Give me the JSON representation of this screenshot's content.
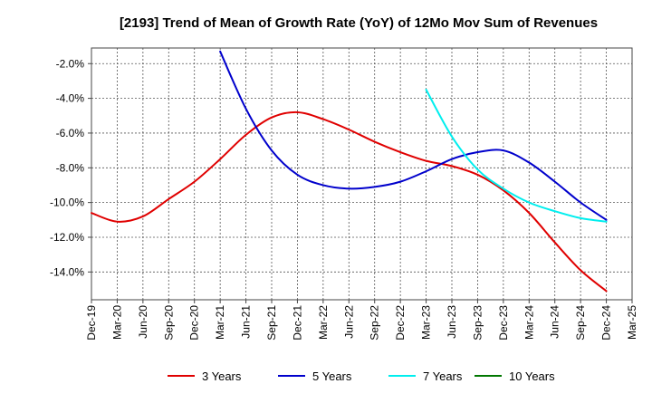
{
  "chart_data": {
    "type": "line",
    "title": "[2193]  Trend of Mean of Growth Rate (YoY) of 12Mo Mov Sum of Revenues",
    "xlabel": "",
    "ylabel": "",
    "x_ticks": [
      "Dec-19",
      "Mar-20",
      "Jun-20",
      "Sep-20",
      "Dec-20",
      "Mar-21",
      "Jun-21",
      "Sep-21",
      "Dec-21",
      "Mar-22",
      "Jun-22",
      "Sep-22",
      "Dec-22",
      "Mar-23",
      "Jun-23",
      "Sep-23",
      "Dec-23",
      "Mar-24",
      "Jun-24",
      "Sep-24",
      "Dec-24",
      "Mar-25"
    ],
    "y_ticks": [
      -2.0,
      -4.0,
      -6.0,
      -8.0,
      -10.0,
      -12.0,
      -14.0
    ],
    "y_tick_labels": [
      "-2.0%",
      "-4.0%",
      "-6.0%",
      "-8.0%",
      "-10.0%",
      "-12.0%",
      "-14.0%"
    ],
    "ylim": [
      -15.6,
      -1.1
    ],
    "grid": true,
    "legend_position": "bottom",
    "series": [
      {
        "name": "3 Years",
        "color": "#e00000",
        "x_index": [
          0,
          1,
          2,
          3,
          4,
          5,
          6,
          7,
          8,
          9,
          10,
          11,
          12,
          13,
          14,
          15,
          16,
          17,
          18,
          19,
          20
        ],
        "values": [
          -10.6,
          -11.1,
          -10.8,
          -9.8,
          -8.8,
          -7.5,
          -6.1,
          -5.1,
          -4.8,
          -5.2,
          -5.8,
          -6.5,
          -7.1,
          -7.6,
          -7.9,
          -8.4,
          -9.3,
          -10.6,
          -12.3,
          -13.9,
          -15.1
        ]
      },
      {
        "name": "5 Years",
        "color": "#0000cc",
        "x_index": [
          5,
          6,
          7,
          8,
          9,
          10,
          11,
          12,
          13,
          14,
          15,
          16,
          17,
          18,
          19,
          20
        ],
        "values": [
          -1.3,
          -4.6,
          -7.0,
          -8.4,
          -9.0,
          -9.2,
          -9.1,
          -8.8,
          -8.2,
          -7.5,
          -7.1,
          -7.0,
          -7.7,
          -8.8,
          -10.0,
          -11.0
        ]
      },
      {
        "name": "7 Years",
        "color": "#00eeee",
        "x_index": [
          13,
          14,
          15,
          16,
          17,
          18,
          19,
          20
        ],
        "values": [
          -3.5,
          -6.2,
          -8.1,
          -9.2,
          -10.0,
          -10.5,
          -10.9,
          -11.1
        ]
      },
      {
        "name": "10 Years",
        "color": "#007700",
        "x_index": [],
        "values": []
      }
    ]
  }
}
